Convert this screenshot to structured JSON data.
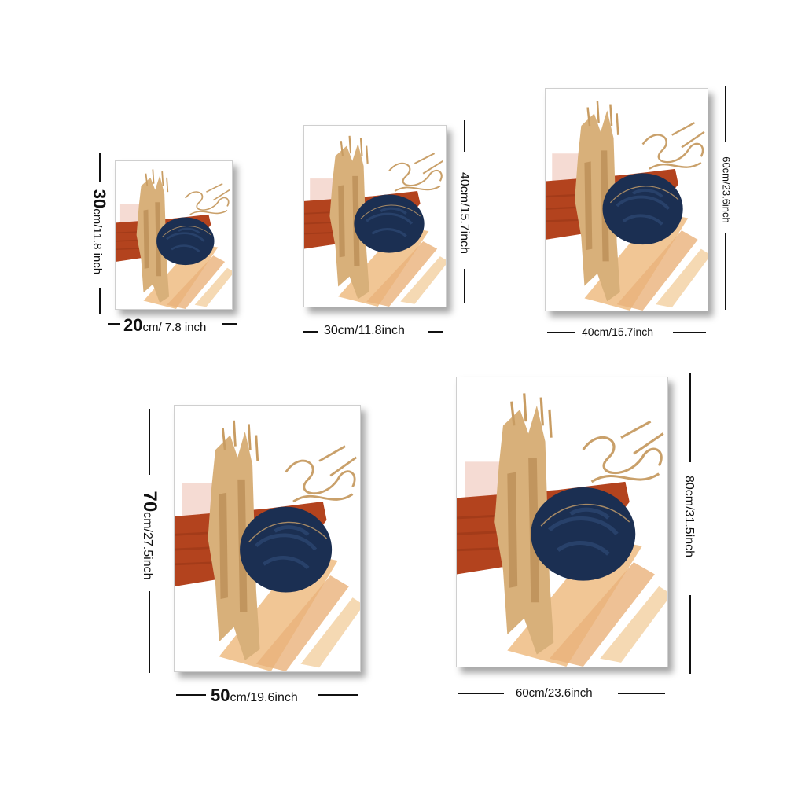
{
  "colors": {
    "gold": "#d8b07a",
    "gold_dark": "#b88a52",
    "rust": "#b3431e",
    "peach": "#f0c08a",
    "blush": "#f3d2c8",
    "navy": "#1b2f52"
  },
  "posters": [
    {
      "id": "20x30",
      "width_label_num": "20",
      "width_label_unit": "cm/ 7.8 inch",
      "height_label_num": "30",
      "height_label_unit": "cm/11.8 inch"
    },
    {
      "id": "30x40",
      "width_label": "30cm/11.8inch",
      "height_label": "40cm/15.7inch"
    },
    {
      "id": "40x60",
      "width_label": "40cm/15.7inch",
      "height_label": "60cm/23.6inch"
    },
    {
      "id": "50x70",
      "width_label_num": "50",
      "width_label_unit": "cm/19.6inch",
      "height_label_num": "70",
      "height_label_unit": "cm/27.5inch"
    },
    {
      "id": "60x80",
      "width_label": "60cm/23.6inch",
      "height_label": "80cm/31.5inch"
    }
  ]
}
